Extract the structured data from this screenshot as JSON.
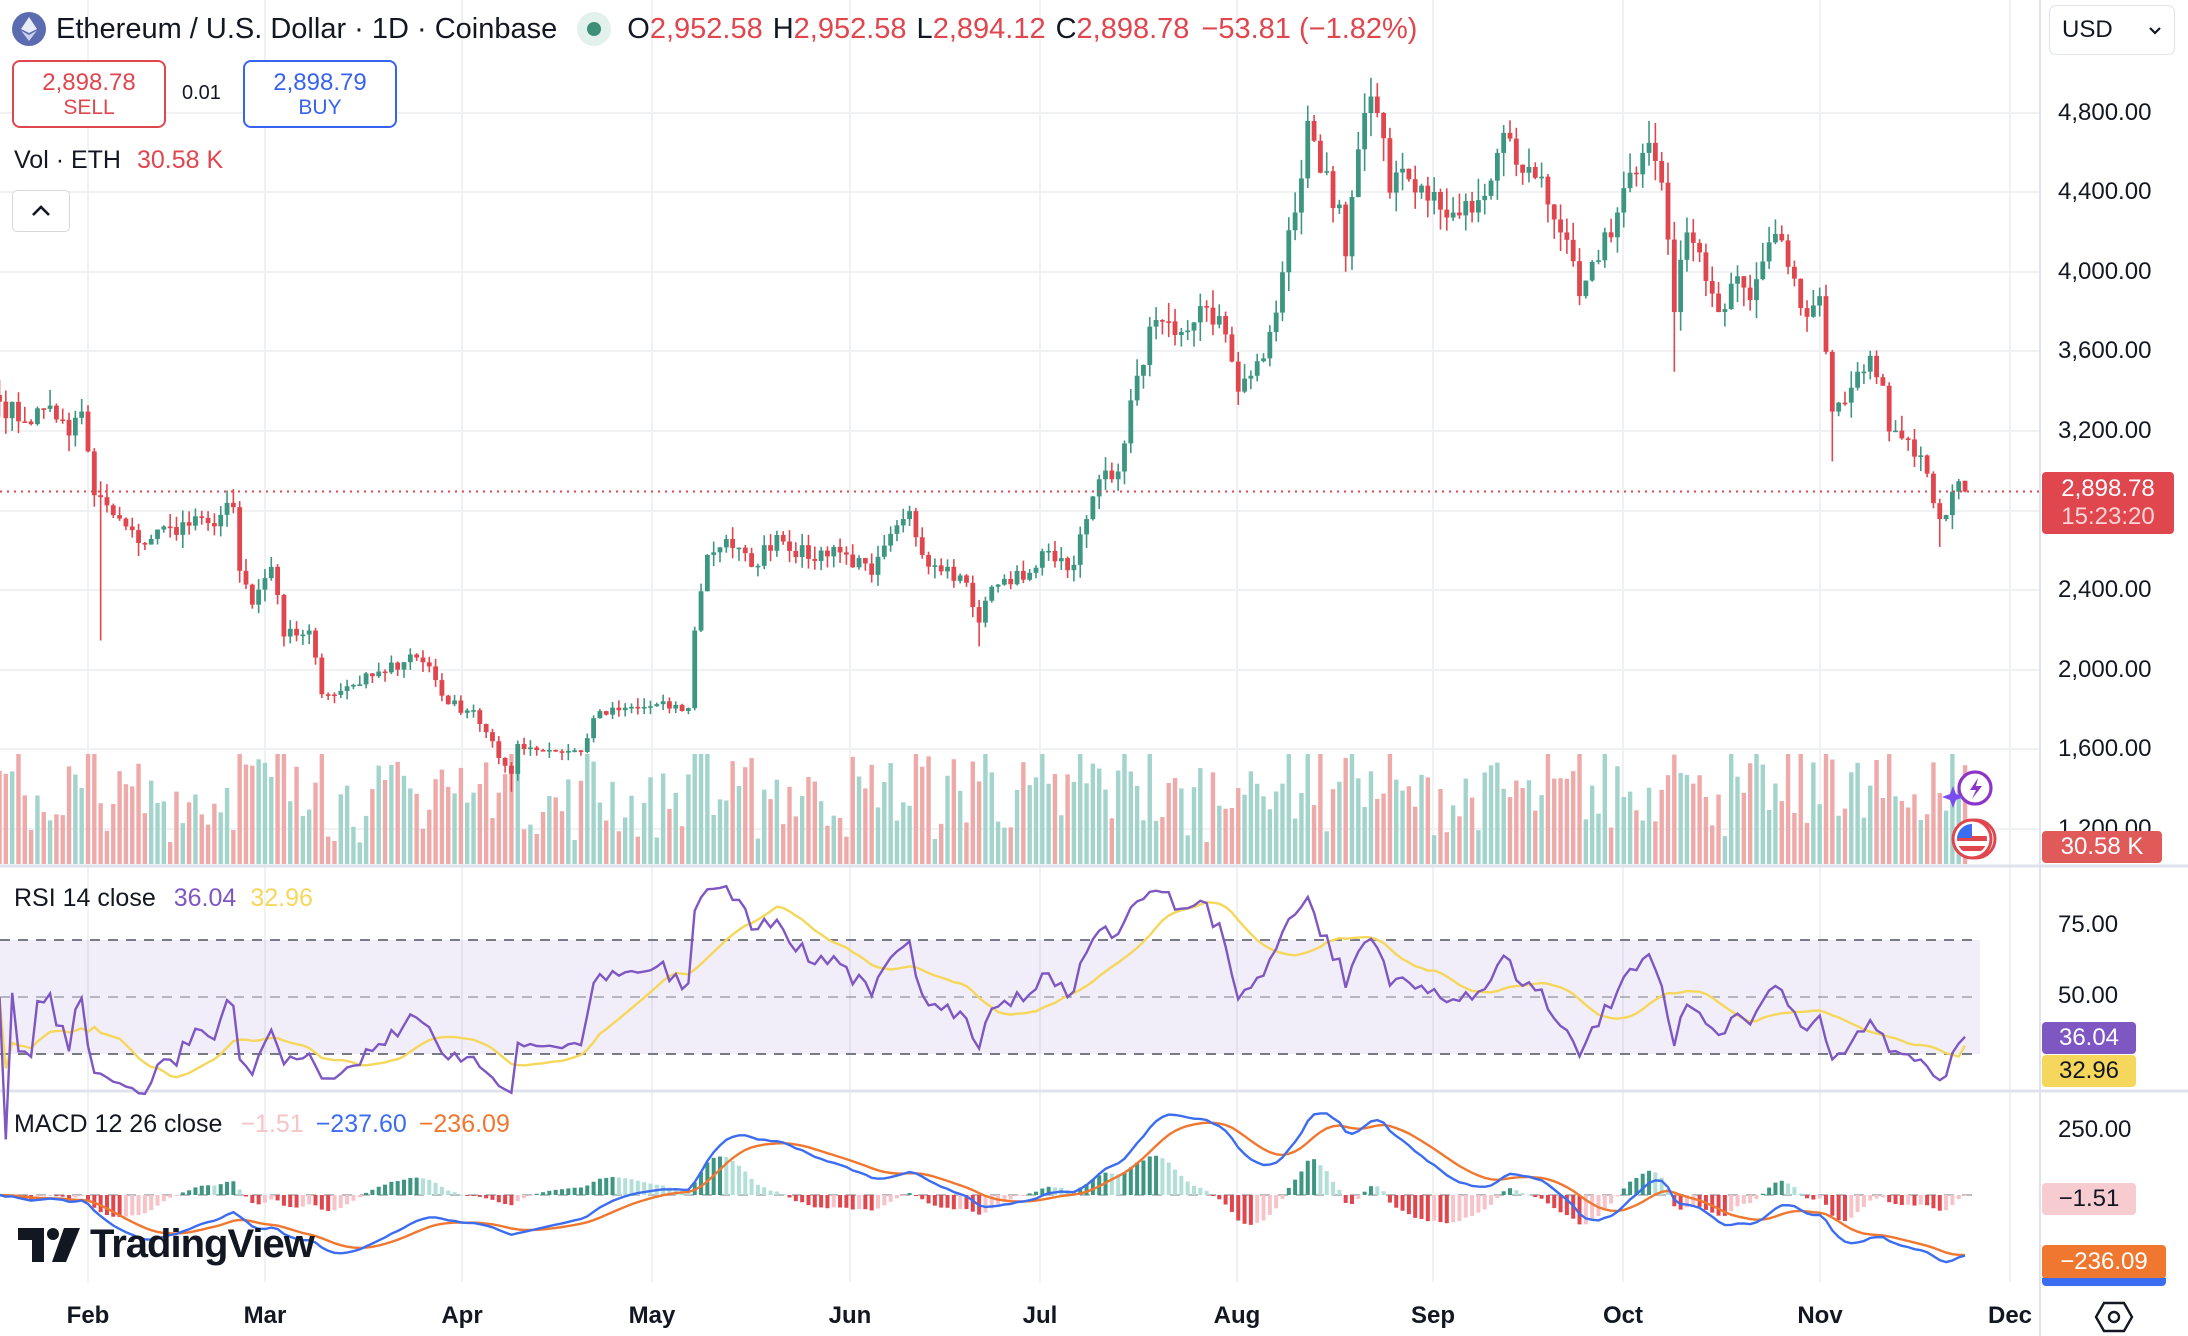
{
  "header": {
    "title": "Ethereum / U.S. Dollar · 1D · Coinbase",
    "ohlc": {
      "o_label": "O",
      "o": "2,952.58",
      "h_label": "H",
      "h": "2,952.58",
      "l_label": "L",
      "l": "2,894.12",
      "c_label": "C",
      "c": "2,898.78",
      "change": "−53.81 (−1.82%)"
    },
    "currency": "USD"
  },
  "trade": {
    "sell_price": "2,898.78",
    "sell_label": "SELL",
    "spread": "0.01",
    "buy_price": "2,898.79",
    "buy_label": "BUY"
  },
  "volume_legend": {
    "label": "Vol · ETH",
    "value": "30.58 K"
  },
  "rsi_legend": {
    "label": "RSI 14 close",
    "rsi": "36.04",
    "ma": "32.96"
  },
  "macd_legend": {
    "label": "MACD 12 26 close",
    "hist": "−1.51",
    "macd": "−237.60",
    "signal": "−236.09"
  },
  "price_axis": {
    "ticks": [
      "4,800.00",
      "4,400.00",
      "4,000.00",
      "3,600.00",
      "3,200.00",
      "2,400.00",
      "2,000.00",
      "1,600.00",
      "1,200.00"
    ],
    "last_price": "2,898.78",
    "countdown": "15:23:20",
    "volume_tag": "30.58 K"
  },
  "rsi_axis": {
    "ticks": [
      "75.00",
      "50.00"
    ],
    "rsi_tag": "36.04",
    "ma_tag": "32.96"
  },
  "macd_axis": {
    "ticks": [
      "250.00"
    ],
    "hist_tag": "−1.51",
    "signal_tag": "−236.09"
  },
  "time_axis": {
    "labels": [
      "Feb",
      "Mar",
      "Apr",
      "May",
      "Jun",
      "Jul",
      "Aug",
      "Sep",
      "Oct",
      "Nov",
      "Dec"
    ]
  },
  "branding": {
    "logo_text": "TradingView"
  },
  "colors": {
    "up": "#3d9682",
    "down": "#e0464e",
    "up_vol": "#a3d4cc",
    "down_vol": "#eeaaa9",
    "rsi": "#7e57c2",
    "rsi_ma": "#f5d75b",
    "macd": "#3c6df0",
    "signal": "#f0772f",
    "grid": "#f0f1f3"
  },
  "chart_data": {
    "type": "candlestick",
    "title": "Ethereum / U.S. Dollar · 1D · Coinbase",
    "start_date": "Jan 18",
    "key_closes": [
      [
        "Jan 18",
        3350
      ],
      [
        "Jan 22",
        3250
      ],
      [
        "Jan 26",
        3330
      ],
      [
        "Jan 29",
        3180
      ],
      [
        "Jan 31",
        3300
      ],
      [
        "Feb 1",
        3100
      ],
      [
        "Feb 2",
        2880
      ],
      [
        "Feb 3",
        2870
      ],
      [
        "Feb 5",
        2780
      ],
      [
        "Feb 9",
        2640
      ],
      [
        "Feb 14",
        2720
      ],
      [
        "Feb 20",
        2740
      ],
      [
        "Feb 24",
        2820
      ],
      [
        "Feb 25",
        2500
      ],
      [
        "Feb 27",
        2330
      ],
      [
        "Mar 2",
        2520
      ],
      [
        "Mar 4",
        2170
      ],
      [
        "Mar 8",
        2200
      ],
      [
        "Mar 10",
        1880
      ],
      [
        "Mar 14",
        1920
      ],
      [
        "Mar 20",
        1990
      ],
      [
        "Mar 24",
        2080
      ],
      [
        "Mar 27",
        2020
      ],
      [
        "Mar 30",
        1830
      ],
      [
        "Apr 3",
        1800
      ],
      [
        "Apr 7",
        1560
      ],
      [
        "Apr 9",
        1480
      ],
      [
        "Apr 10",
        1630
      ],
      [
        "Apr 15",
        1600
      ],
      [
        "Apr 20",
        1590
      ],
      [
        "Apr 22",
        1760
      ],
      [
        "Apr 26",
        1800
      ],
      [
        "May 1",
        1820
      ],
      [
        "May 7",
        1810
      ],
      [
        "May 8",
        2200
      ],
      [
        "May 10",
        2580
      ],
      [
        "May 13",
        2660
      ],
      [
        "May 17",
        2520
      ],
      [
        "May 21",
        2680
      ],
      [
        "May 26",
        2560
      ],
      [
        "May 30",
        2620
      ],
      [
        "Jun 5",
        2480
      ],
      [
        "Jun 10",
        2760
      ],
      [
        "Jun 11",
        2800
      ],
      [
        "Jun 13",
        2580
      ],
      [
        "Jun 17",
        2520
      ],
      [
        "Jun 20",
        2440
      ],
      [
        "Jun 22",
        2240
      ],
      [
        "Jun 24",
        2420
      ],
      [
        "Jun 30",
        2490
      ],
      [
        "Jul 3",
        2600
      ],
      [
        "Jul 7",
        2530
      ],
      [
        "Jul 9",
        2760
      ],
      [
        "Jul 11",
        2960
      ],
      [
        "Jul 13",
        2960
      ],
      [
        "Jul 15",
        3140
      ],
      [
        "Jul 17",
        3480
      ],
      [
        "Jul 20",
        3760
      ],
      [
        "Jul 24",
        3700
      ],
      [
        "Jul 27",
        3830
      ],
      [
        "Jul 30",
        3780
      ],
      [
        "Aug 2",
        3400
      ],
      [
        "Aug 4",
        3480
      ],
      [
        "Aug 7",
        3700
      ],
      [
        "Aug 9",
        4000
      ],
      [
        "Aug 11",
        4300
      ],
      [
        "Aug 13",
        4760
      ],
      [
        "Aug 15",
        4500
      ],
      [
        "Aug 18",
        4340
      ],
      [
        "Aug 19",
        4080
      ],
      [
        "Aug 22",
        4800
      ],
      [
        "Aug 24",
        4800
      ],
      [
        "Aug 26",
        4400
      ],
      [
        "Aug 28",
        4520
      ],
      [
        "Sep 1",
        4360
      ],
      [
        "Sep 5",
        4300
      ],
      [
        "Sep 8",
        4300
      ],
      [
        "Sep 11",
        4460
      ],
      [
        "Sep 13",
        4700
      ],
      [
        "Sep 16",
        4500
      ],
      [
        "Sep 19",
        4480
      ],
      [
        "Sep 22",
        4200
      ],
      [
        "Sep 25",
        3880
      ],
      [
        "Sep 28",
        4060
      ],
      [
        "Oct 1",
        4300
      ],
      [
        "Oct 3",
        4500
      ],
      [
        "Oct 6",
        4650
      ],
      [
        "Oct 8",
        4450
      ],
      [
        "Oct 10",
        3800
      ],
      [
        "Oct 12",
        4200
      ],
      [
        "Oct 14",
        4100
      ],
      [
        "Oct 17",
        3800
      ],
      [
        "Oct 20",
        3980
      ],
      [
        "Oct 22",
        3860
      ],
      [
        "Oct 25",
        4150
      ],
      [
        "Oct 27",
        4160
      ],
      [
        "Oct 30",
        3820
      ],
      [
        "Nov 2",
        3880
      ],
      [
        "Nov 3",
        3600
      ],
      [
        "Nov 4",
        3300
      ],
      [
        "Nov 7",
        3420
      ],
      [
        "Nov 10",
        3580
      ],
      [
        "Nov 12",
        3430
      ],
      [
        "Nov 13",
        3200
      ],
      [
        "Nov 16",
        3160
      ],
      [
        "Nov 18",
        3080
      ],
      [
        "Nov 20",
        2840
      ],
      [
        "Nov 21",
        2760
      ],
      [
        "Nov 22",
        2780
      ],
      [
        "Nov 24",
        2950
      ],
      [
        "Nov 25",
        2898.78
      ]
    ],
    "price_range": [
      1200,
      4950
    ],
    "rsi_range_shown": [
      20,
      90
    ],
    "rsi_bands": [
      70,
      50,
      30
    ],
    "macd_range_shown": [
      -300,
      350
    ],
    "xlabel": "",
    "ylabel": "USD",
    "x_ticks": [
      "Feb",
      "Mar",
      "Apr",
      "May",
      "Jun",
      "Jul",
      "Aug",
      "Sep",
      "Oct",
      "Nov",
      "Dec"
    ],
    "y_ticks": [
      1200,
      1600,
      2000,
      2400,
      3200,
      3600,
      4000,
      4400,
      4800
    ],
    "last": {
      "open": 2952.58,
      "high": 2952.58,
      "low": 2894.12,
      "close": 2898.78,
      "change": -53.81,
      "change_pct": -1.82,
      "volume": "30.58K"
    },
    "indicators": {
      "rsi": {
        "length": 14,
        "value": 36.04,
        "ma": 32.96
      },
      "macd": {
        "fast": 12,
        "slow": 26,
        "hist": -1.51,
        "macd": -237.6,
        "signal": -236.09
      }
    }
  }
}
